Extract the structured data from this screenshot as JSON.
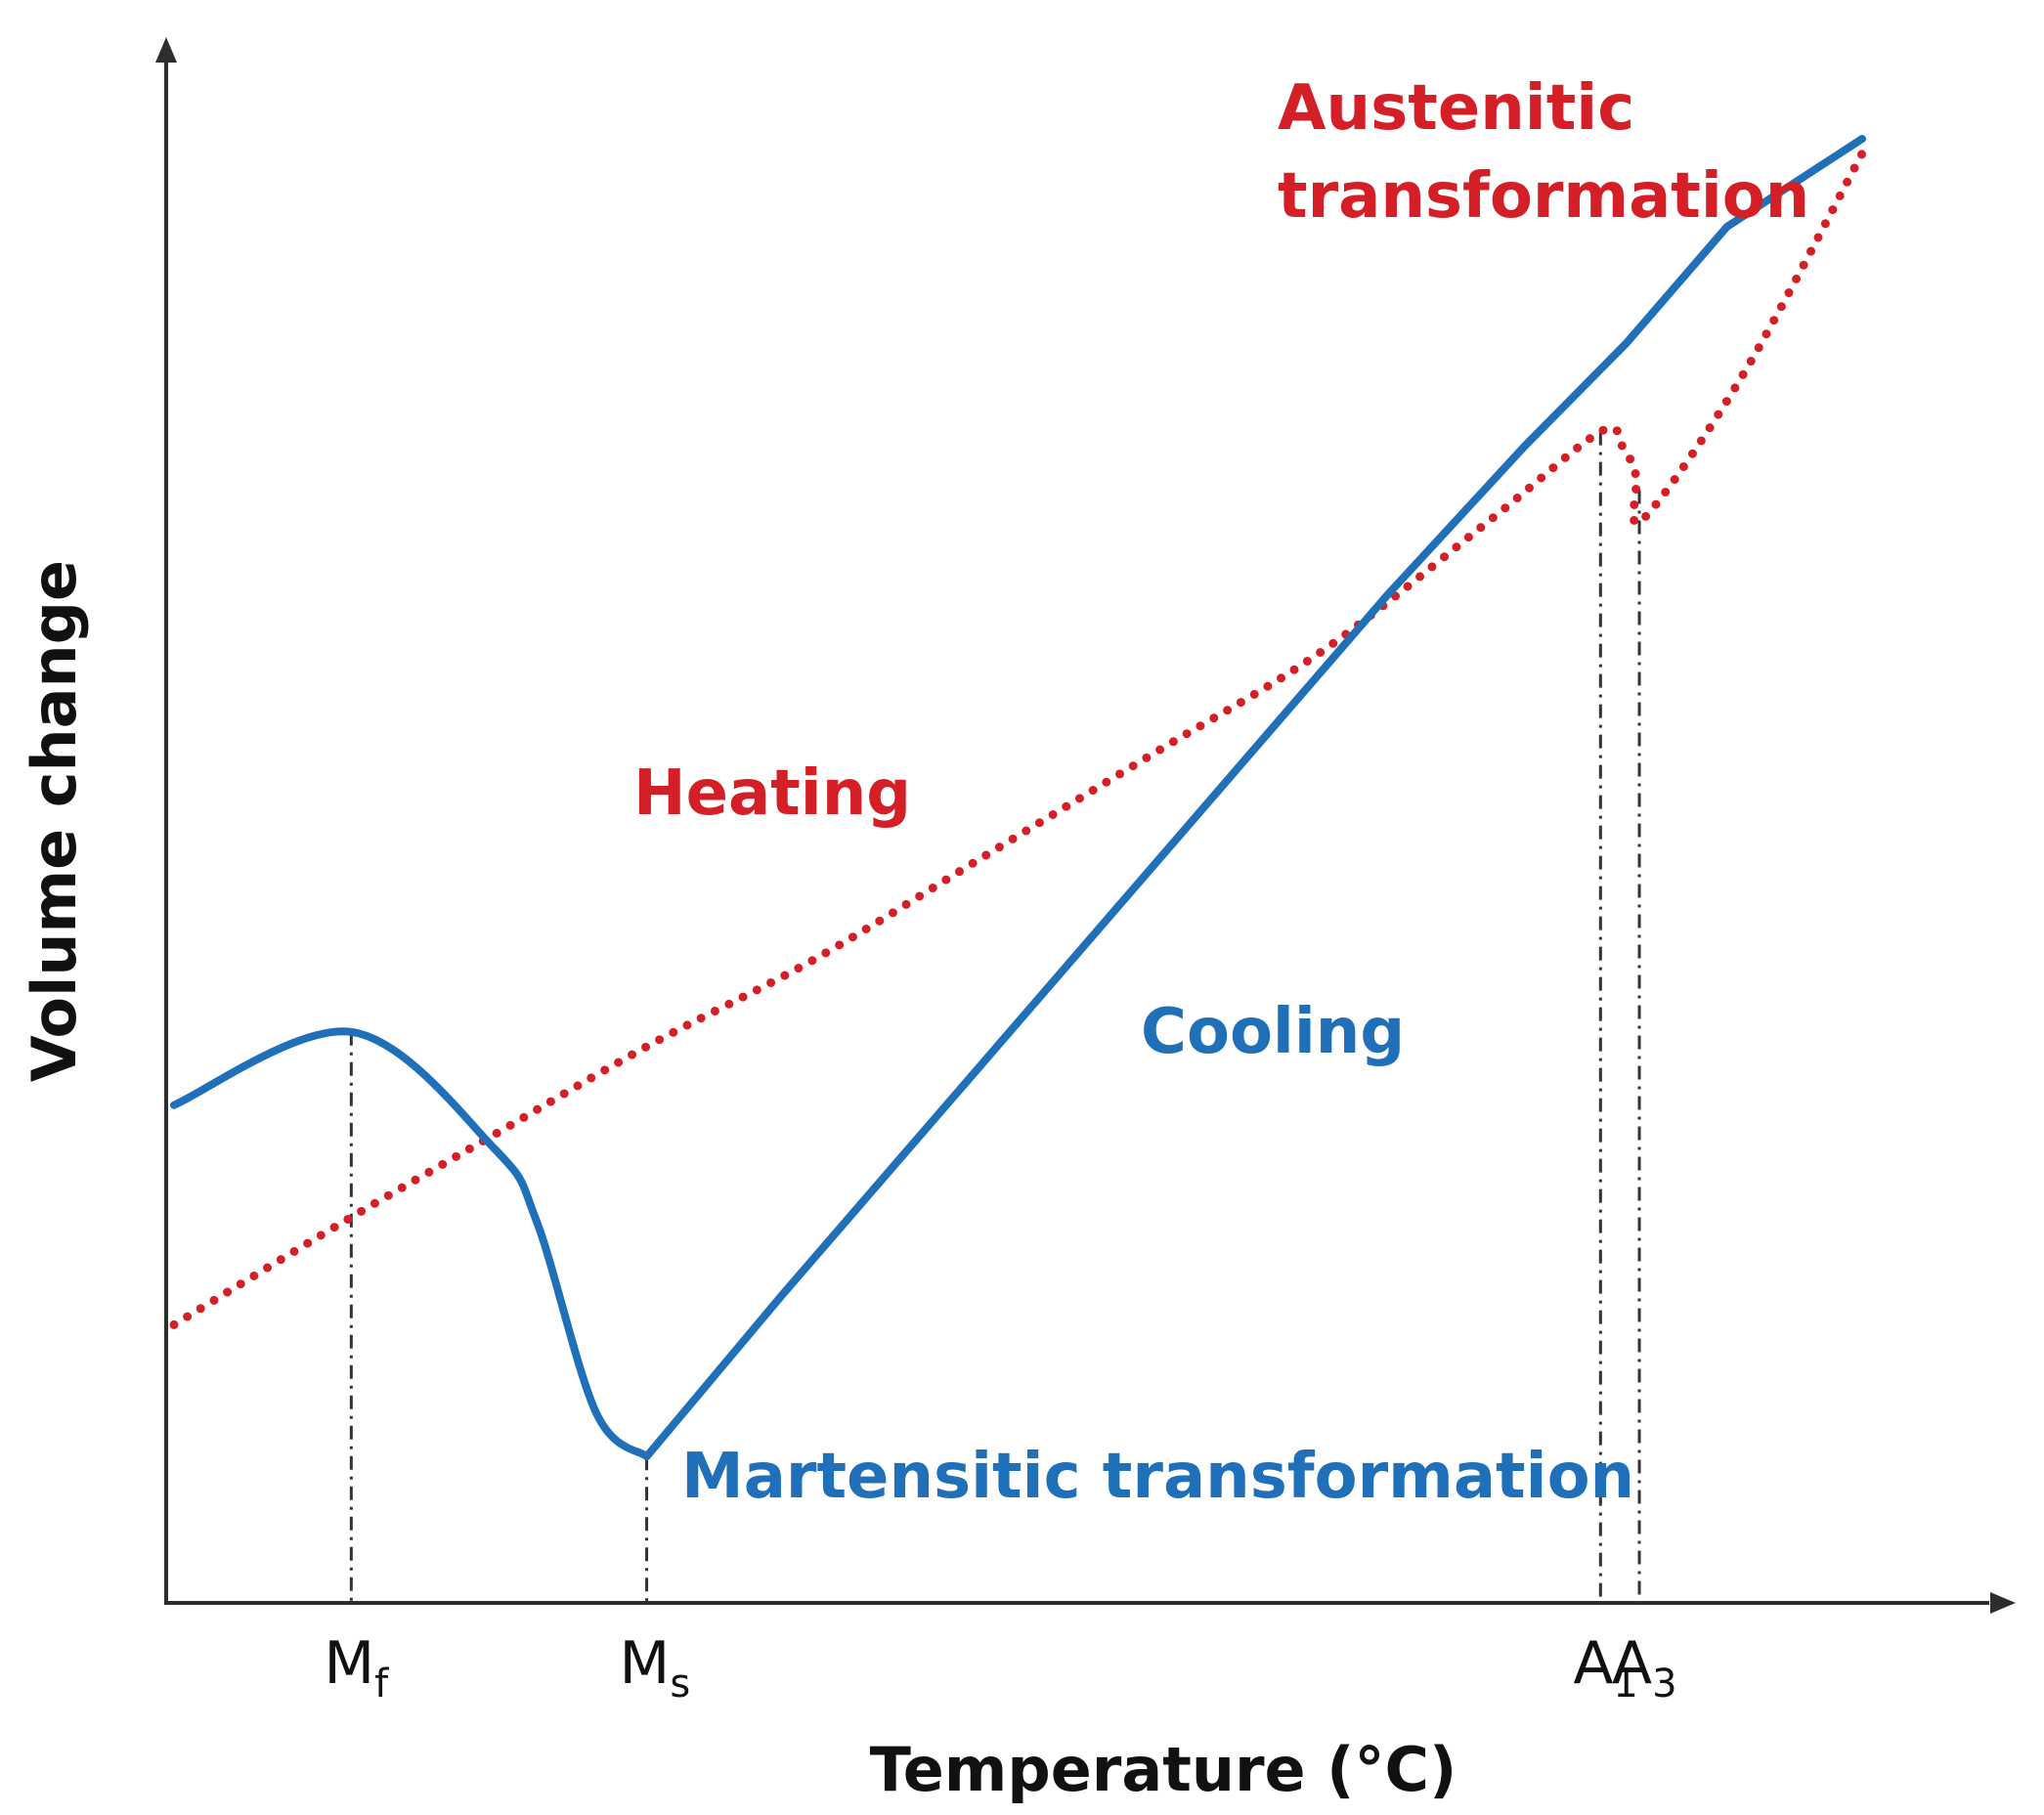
{
  "chart_data": {
    "type": "line",
    "title": "",
    "xlabel": "Temperature (°C)",
    "ylabel": "Volume change",
    "xlim": [
      0,
      100
    ],
    "ylim": [
      0,
      100
    ],
    "grid": false,
    "series": [
      {
        "name": "Heating",
        "color": "#d41f26",
        "style": "dotted",
        "points": [
          [
            0,
            19
          ],
          [
            10,
            26
          ],
          [
            19,
            32
          ],
          [
            28,
            38
          ],
          [
            38,
            44
          ],
          [
            48,
            51
          ],
          [
            58,
            58
          ],
          [
            68,
            65
          ],
          [
            78,
            74
          ],
          [
            84.5,
            80
          ],
          [
            85.8,
            79
          ],
          [
            86.6,
            77
          ],
          [
            87,
            74
          ],
          [
            93,
            84
          ],
          [
            100,
            99
          ]
        ]
      },
      {
        "name": "Cooling",
        "color": "#1f70b8",
        "style": "solid",
        "points": [
          [
            0,
            34
          ],
          [
            10.5,
            39
          ],
          [
            19,
            31
          ],
          [
            21.5,
            26
          ],
          [
            25,
            13
          ],
          [
            28,
            10
          ],
          [
            36,
            21
          ],
          [
            48,
            37
          ],
          [
            60,
            53
          ],
          [
            72,
            69
          ],
          [
            80,
            79
          ],
          [
            86,
            86
          ],
          [
            92,
            94
          ],
          [
            100,
            100
          ]
        ]
      }
    ],
    "x_markers": [
      {
        "id": "mf",
        "letter": "M",
        "sub": "f",
        "x": 10.5,
        "y": 39
      },
      {
        "id": "ms",
        "letter": "M",
        "sub": "s",
        "x": 28,
        "y": 10
      },
      {
        "id": "a1",
        "letter": "A",
        "sub": "1",
        "x": 84.5,
        "y": 80
      },
      {
        "id": "a3",
        "letter": "A",
        "sub": "3",
        "x": 86.8,
        "y": 76
      }
    ],
    "annotations": {
      "austenitic_line1": "Austenitic",
      "austenitic_line2": "transformation",
      "heating": "Heating",
      "cooling": "Cooling",
      "martensitic": "Martensitic transformation"
    }
  }
}
